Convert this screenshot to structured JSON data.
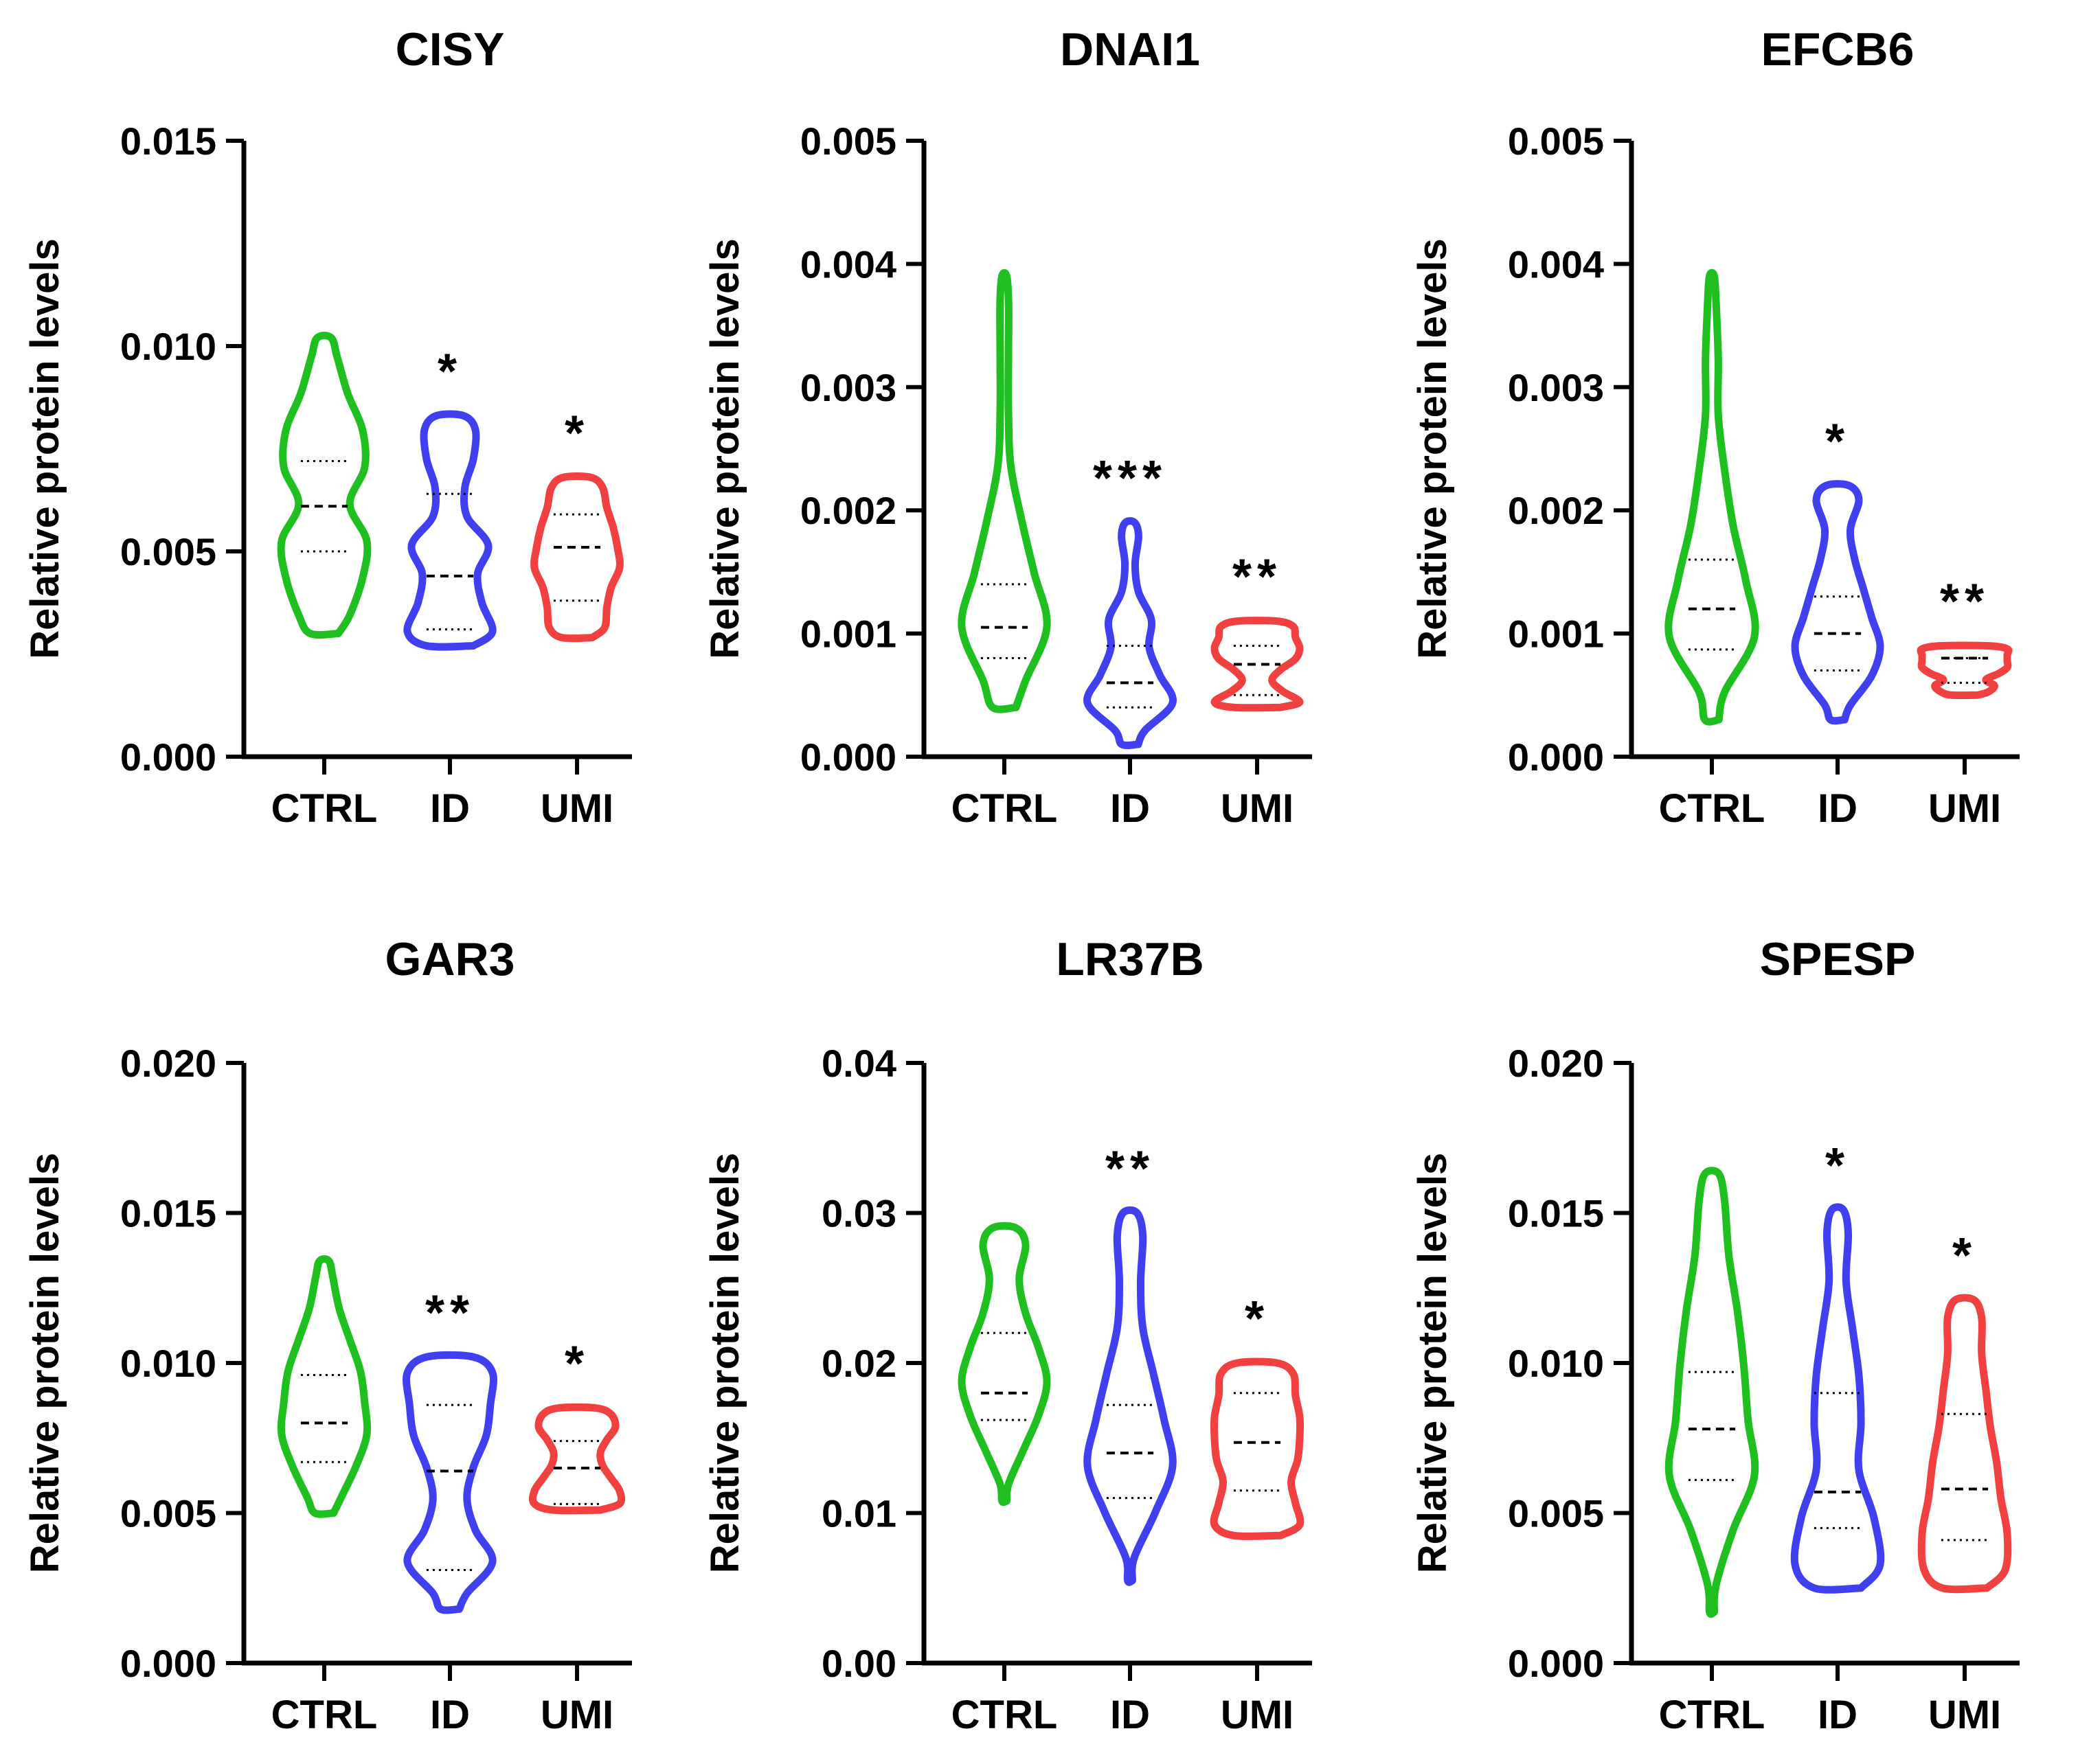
{
  "figure": {
    "colors": {
      "CTRL": "#1fbf1f",
      "ID": "#4040f0",
      "UMI": "#f04040",
      "axis": "#000000"
    }
  },
  "chart_data": [
    {
      "type": "violin",
      "title": "CISY",
      "ylabel": "Relative protein levels",
      "categories": [
        "CTRL",
        "ID",
        "UMI"
      ],
      "ylim": [
        0,
        0.015
      ],
      "yticks": [
        "0.000",
        "0.005",
        "0.010",
        "0.015"
      ],
      "series": [
        {
          "name": "CTRL",
          "min": 0.003,
          "q1": 0.005,
          "median": 0.0061,
          "q3": 0.0072,
          "max": 0.0102,
          "profile": [
            0.6,
            0.9,
            1.0,
            0.6,
            0.95,
            0.9,
            0.55,
            0.3
          ]
        },
        {
          "name": "ID",
          "min": 0.0027,
          "q1": 0.0031,
          "median": 0.0044,
          "q3": 0.0064,
          "max": 0.0083,
          "profile": [
            1.0,
            0.75,
            0.65,
            0.9,
            0.4,
            0.35,
            0.55,
            0.6
          ]
        },
        {
          "name": "UMI",
          "min": 0.0029,
          "q1": 0.0038,
          "median": 0.0051,
          "q3": 0.0059,
          "max": 0.0068,
          "profile": [
            0.65,
            0.7,
            0.8,
            1.0,
            0.95,
            0.85,
            0.7,
            0.6
          ]
        }
      ],
      "significance": [
        "",
        "*",
        "*"
      ]
    },
    {
      "type": "violin",
      "title": "DNAI1",
      "ylabel": "Relative protein levels",
      "categories": [
        "CTRL",
        "ID",
        "UMI"
      ],
      "ylim": [
        0,
        0.005
      ],
      "yticks": [
        "0.000",
        "0.001",
        "0.002",
        "0.003",
        "0.004",
        "0.005"
      ],
      "series": [
        {
          "name": "CTRL",
          "min": 0.0004,
          "q1": 0.0008,
          "median": 0.00105,
          "q3": 0.0014,
          "max": 0.0039,
          "profile": [
            0.5,
            1.0,
            0.7,
            0.4,
            0.15,
            0.08,
            0.05,
            0.1
          ]
        },
        {
          "name": "ID",
          "min": 0.0001,
          "q1": 0.0004,
          "median": 0.0006,
          "q3": 0.0009,
          "max": 0.0019,
          "profile": [
            0.35,
            1.0,
            0.7,
            0.45,
            0.5,
            0.2,
            0.12,
            0.2
          ]
        },
        {
          "name": "UMI",
          "min": 0.0004,
          "q1": 0.0005,
          "median": 0.00075,
          "q3": 0.0009,
          "max": 0.0011,
          "profile": [
            1.0,
            0.6,
            0.35,
            0.55,
            0.9,
            1.0,
            0.9,
            0.85
          ]
        }
      ],
      "significance": [
        "",
        "***",
        "**"
      ]
    },
    {
      "type": "violin",
      "title": "EFCB6",
      "ylabel": "Relative protein levels",
      "categories": [
        "CTRL",
        "ID",
        "UMI"
      ],
      "ylim": [
        0,
        0.005
      ],
      "yticks": [
        "0.000",
        "0.001",
        "0.002",
        "0.003",
        "0.004",
        "0.005"
      ],
      "series": [
        {
          "name": "CTRL",
          "min": 0.0003,
          "q1": 0.00087,
          "median": 0.0012,
          "q3": 0.0016,
          "max": 0.0039,
          "profile": [
            0.3,
            1.0,
            0.8,
            0.5,
            0.3,
            0.15,
            0.15,
            0.1
          ]
        },
        {
          "name": "ID",
          "min": 0.0003,
          "q1": 0.0007,
          "median": 0.001,
          "q3": 0.0013,
          "max": 0.0022,
          "profile": [
            0.3,
            0.8,
            1.0,
            0.8,
            0.6,
            0.4,
            0.3,
            0.5
          ]
        },
        {
          "name": "UMI",
          "min": 0.0005,
          "q1": 0.0006,
          "median": 0.0008,
          "q3": 0.0008,
          "max": 0.0009,
          "profile": [
            0.55,
            0.7,
            0.5,
            0.8,
            1.0,
            1.0,
            1.0,
            1.0
          ]
        }
      ],
      "significance": [
        "",
        "*",
        "**"
      ]
    },
    {
      "type": "violin",
      "title": "GAR3",
      "ylabel": "Relative protein levels",
      "categories": [
        "CTRL",
        "ID",
        "UMI"
      ],
      "ylim": [
        0,
        0.02
      ],
      "yticks": [
        "0.000",
        "0.005",
        "0.010",
        "0.015",
        "0.020"
      ],
      "series": [
        {
          "name": "CTRL",
          "min": 0.005,
          "q1": 0.0067,
          "median": 0.008,
          "q3": 0.0096,
          "max": 0.0134,
          "profile": [
            0.4,
            0.75,
            1.0,
            0.95,
            0.85,
            0.6,
            0.35,
            0.2
          ]
        },
        {
          "name": "ID",
          "min": 0.0018,
          "q1": 0.0031,
          "median": 0.0064,
          "q3": 0.0086,
          "max": 0.0102,
          "profile": [
            0.4,
            1.0,
            0.6,
            0.4,
            0.55,
            0.85,
            0.95,
            1.0
          ]
        },
        {
          "name": "UMI",
          "min": 0.0051,
          "q1": 0.0053,
          "median": 0.0065,
          "q3": 0.0074,
          "max": 0.0085,
          "profile": [
            1.0,
            1.0,
            0.8,
            0.6,
            0.55,
            0.7,
            0.9,
            0.8
          ]
        }
      ],
      "significance": [
        "",
        "**",
        "*"
      ]
    },
    {
      "type": "violin",
      "title": "LR37B",
      "ylabel": "Relative protein levels",
      "categories": [
        "CTRL",
        "ID",
        "UMI"
      ],
      "ylim": [
        0,
        0.04
      ],
      "yticks": [
        "0.00",
        "0.01",
        "0.02",
        "0.03",
        "0.04"
      ],
      "series": [
        {
          "name": "CTRL",
          "min": 0.0108,
          "q1": 0.0162,
          "median": 0.018,
          "q3": 0.022,
          "max": 0.029,
          "profile": [
            0.1,
            0.45,
            0.8,
            1.0,
            0.8,
            0.5,
            0.35,
            0.5
          ]
        },
        {
          "name": "ID",
          "min": 0.0055,
          "q1": 0.011,
          "median": 0.014,
          "q3": 0.0172,
          "max": 0.03,
          "profile": [
            0.1,
            0.6,
            1.0,
            0.8,
            0.55,
            0.3,
            0.25,
            0.3
          ]
        },
        {
          "name": "UMI",
          "min": 0.0085,
          "q1": 0.0115,
          "median": 0.0147,
          "q3": 0.018,
          "max": 0.02,
          "profile": [
            1.0,
            0.9,
            0.8,
            0.95,
            1.0,
            1.0,
            0.9,
            0.85
          ]
        }
      ],
      "significance": [
        "",
        "**",
        "*"
      ]
    },
    {
      "type": "violin",
      "title": "SPESP",
      "ylabel": "Relative protein levels",
      "categories": [
        "CTRL",
        "ID",
        "UMI"
      ],
      "ylim": [
        0,
        0.02
      ],
      "yticks": [
        "0.000",
        "0.005",
        "0.010",
        "0.015",
        "0.020"
      ],
      "series": [
        {
          "name": "CTRL",
          "min": 0.0017,
          "q1": 0.0061,
          "median": 0.0078,
          "q3": 0.0097,
          "max": 0.0163,
          "profile": [
            0.1,
            0.5,
            1.0,
            0.85,
            0.75,
            0.6,
            0.4,
            0.3
          ]
        },
        {
          "name": "ID",
          "min": 0.0025,
          "q1": 0.0045,
          "median": 0.0057,
          "q3": 0.009,
          "max": 0.0151,
          "profile": [
            1.0,
            0.85,
            0.5,
            0.55,
            0.5,
            0.35,
            0.2,
            0.25
          ]
        },
        {
          "name": "UMI",
          "min": 0.0025,
          "q1": 0.0041,
          "median": 0.0058,
          "q3": 0.0083,
          "max": 0.0121,
          "profile": [
            0.95,
            1.0,
            0.85,
            0.75,
            0.6,
            0.5,
            0.4,
            0.4
          ]
        }
      ],
      "significance": [
        "",
        "*",
        "*"
      ]
    }
  ]
}
